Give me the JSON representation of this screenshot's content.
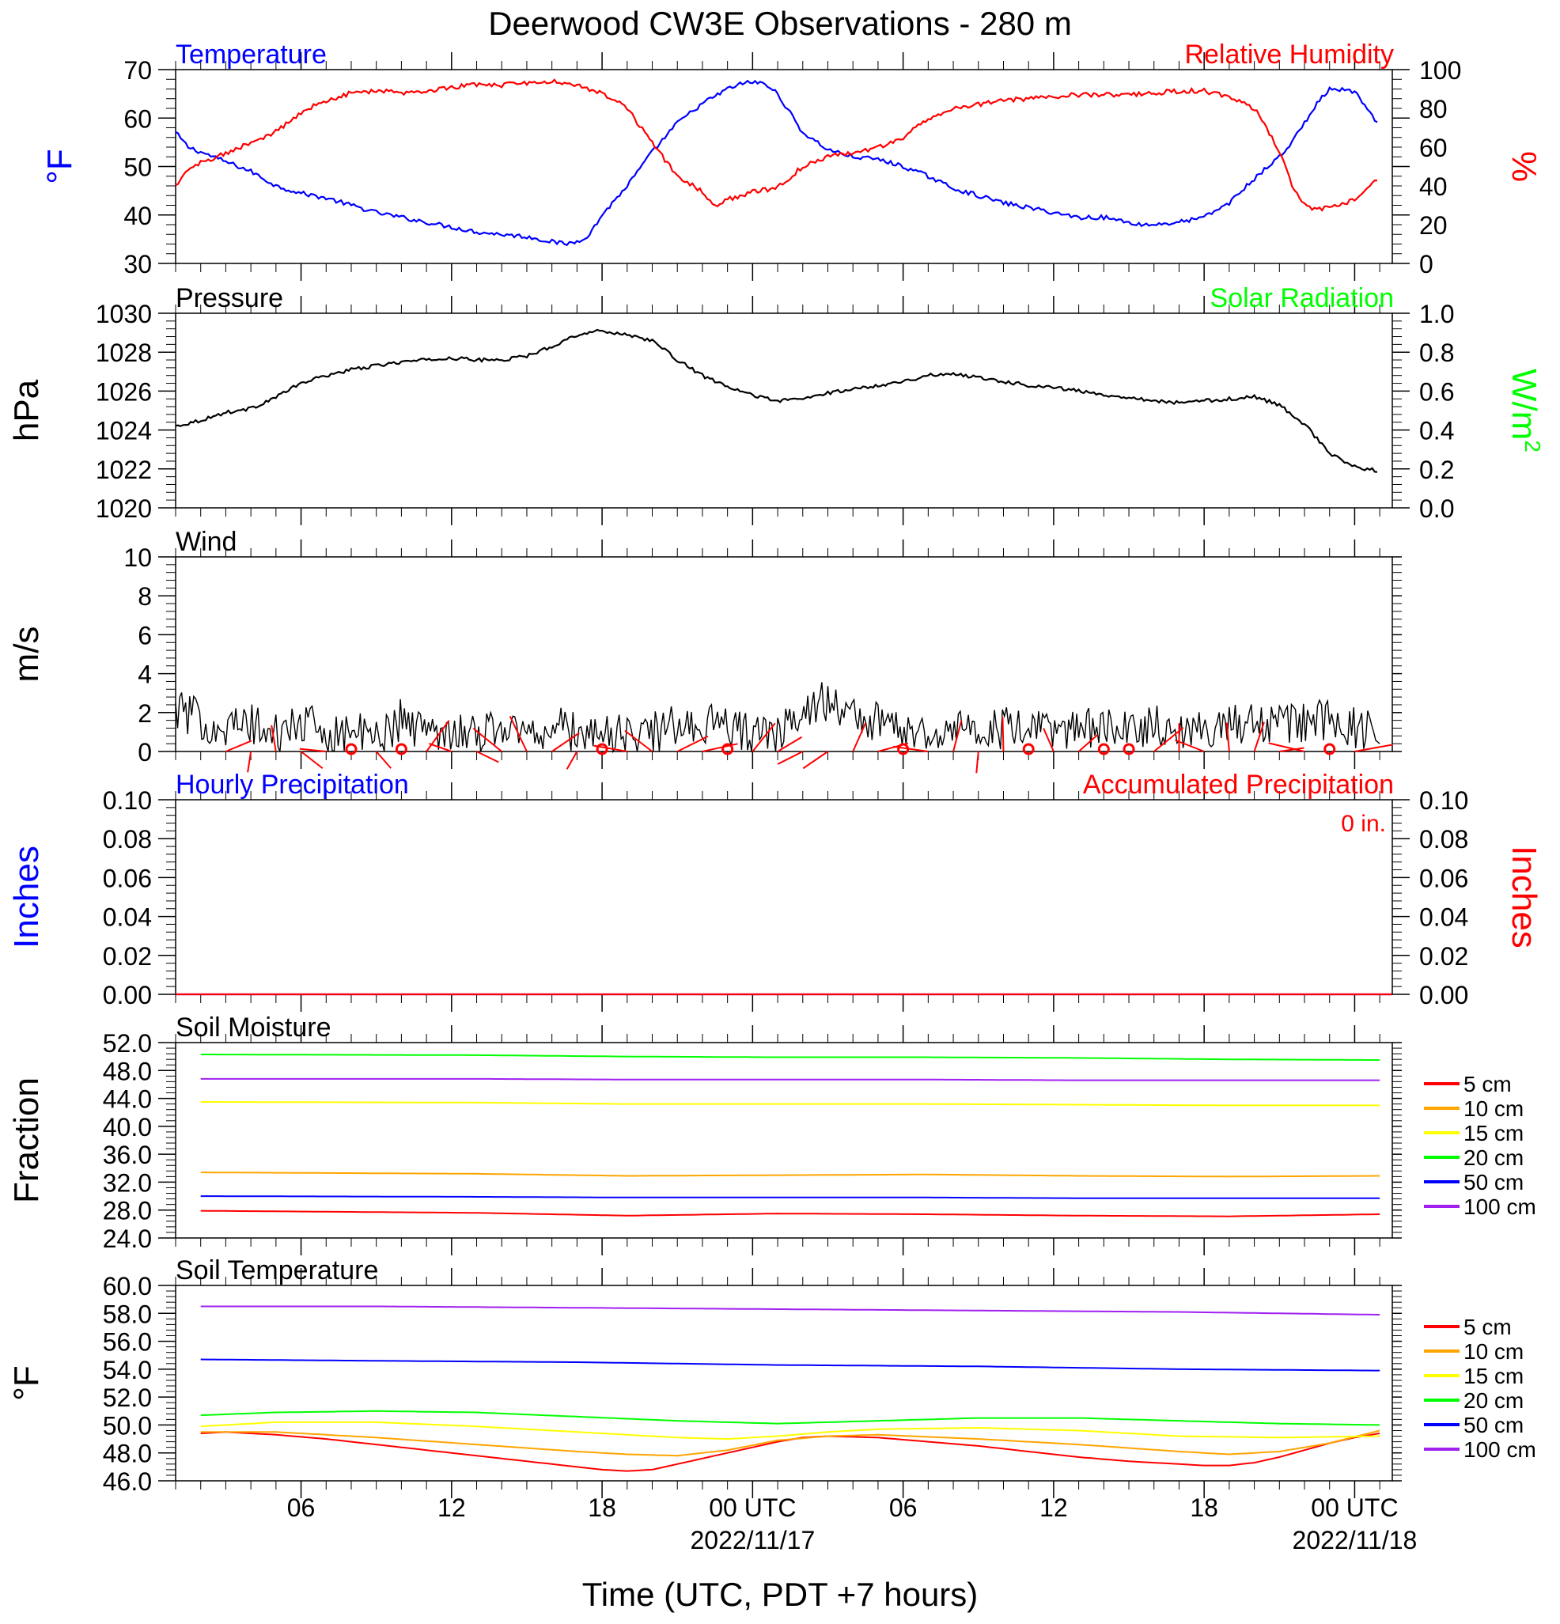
{
  "colors": {
    "temperature": "#0000ff",
    "humidity": "#ff0000",
    "solar": "#00ff00",
    "black": "#000000",
    "soil": [
      "#ff0000",
      "#ffa500",
      "#ffff00",
      "#00ff00",
      "#0000ff",
      "#a020f0"
    ]
  },
  "chart_data": [
    {
      "type": "line",
      "title": "Deerwood CW3E Observations - 280 m",
      "panel": "temperature-humidity",
      "left_title": "Temperature",
      "right_title": "Relative Humidity",
      "ylabel_left": "°F",
      "ylabel_right": "%",
      "ylim_left": [
        30,
        70
      ],
      "ylim_right": [
        0,
        100
      ],
      "yticks_left": [
        "30",
        "40",
        "50",
        "60",
        "70"
      ],
      "yticks_right": [
        "0",
        "20",
        "40",
        "60",
        "80",
        "100"
      ],
      "xlim_hours": [
        0,
        48
      ],
      "series": [
        {
          "name": "Temperature",
          "axis": "left",
          "x": [
            0,
            0.5,
            1,
            2,
            3,
            4,
            5,
            6,
            7,
            8,
            9,
            10,
            11,
            12,
            13,
            14,
            15,
            15.5,
            16,
            16.5,
            17,
            18,
            19,
            20,
            21,
            22,
            22.5,
            23,
            23.5,
            24,
            24.5,
            25,
            26,
            27,
            28,
            29,
            30,
            31,
            32,
            33,
            34,
            35,
            36,
            37,
            37.5,
            38,
            38.5,
            39,
            40,
            41,
            42,
            43,
            44,
            44.5,
            45,
            45.5,
            46,
            47,
            48
          ],
          "y": [
            57,
            54,
            53,
            51,
            49,
            46,
            44.5,
            43.5,
            42,
            40.5,
            39.5,
            38.5,
            37.5,
            36.5,
            36,
            35.5,
            34.5,
            34,
            34.5,
            36,
            40,
            46,
            53,
            59,
            63,
            66,
            67,
            67.5,
            67,
            65,
            61,
            57,
            53.5,
            52,
            51.5,
            50,
            48,
            45.5,
            44,
            42.5,
            41.5,
            40.5,
            39.5,
            39.5,
            39,
            38.5,
            38,
            38,
            38.5,
            39.5,
            42.5,
            47.5,
            52,
            55,
            59,
            63,
            66,
            65.5,
            58
          ]
        },
        {
          "name": "Relative Humidity",
          "axis": "right",
          "x": [
            0,
            0.5,
            1,
            2,
            3,
            4,
            5,
            6,
            7,
            8,
            9,
            10,
            11,
            12,
            13,
            14,
            15,
            16,
            17,
            18,
            19,
            20,
            21,
            21.5,
            22,
            23,
            24,
            25,
            26,
            27,
            28,
            29,
            30,
            31,
            32,
            33,
            34,
            35,
            36,
            37,
            38,
            39,
            40,
            41,
            42,
            43,
            44,
            44.5,
            45,
            45.5,
            46,
            47,
            48
          ],
          "y": [
            40,
            48,
            52,
            57,
            62,
            68,
            78,
            84,
            88,
            89,
            88,
            89,
            91,
            92,
            92,
            93,
            94,
            92,
            88,
            80,
            62,
            45,
            37,
            30,
            33,
            37,
            39,
            50,
            55,
            57,
            60,
            65,
            75,
            80,
            82,
            84,
            85,
            86,
            87,
            87,
            87,
            88,
            89,
            89,
            86,
            80,
            58,
            40,
            30,
            28,
            29,
            33,
            45
          ]
        }
      ]
    },
    {
      "type": "line",
      "panel": "pressure",
      "left_title": "Pressure",
      "right_title": "Solar Radiation",
      "ylabel_left": "hPa",
      "ylabel_right": "W/m",
      "ylabel_right_sup": "2",
      "ylim_left": [
        1020,
        1030
      ],
      "ylim_right": [
        0.0,
        1.0
      ],
      "yticks_left": [
        "1020",
        "1022",
        "1024",
        "1026",
        "1028",
        "1030"
      ],
      "yticks_right": [
        "0.0",
        "0.2",
        "0.4",
        "0.6",
        "0.8",
        "1.0"
      ],
      "series": [
        {
          "name": "Pressure",
          "axis": "left",
          "x": [
            0,
            1,
            2,
            3,
            4,
            5,
            6,
            7,
            8,
            9,
            10,
            11,
            12,
            13,
            14,
            15,
            16,
            16.5,
            17,
            18,
            19,
            20,
            21,
            22,
            23,
            24,
            25,
            26,
            27,
            28,
            29,
            30,
            31,
            32,
            33,
            34,
            35,
            36,
            37,
            38,
            39,
            40,
            41,
            42,
            43,
            44,
            45,
            46,
            47,
            48
          ],
          "y": [
            1024.2,
            1024.5,
            1024.9,
            1025.1,
            1025.7,
            1026.4,
            1026.8,
            1027.1,
            1027.3,
            1027.5,
            1027.6,
            1027.7,
            1027.6,
            1027.6,
            1027.8,
            1028.3,
            1028.9,
            1029.0,
            1029.1,
            1028.9,
            1028.6,
            1027.6,
            1026.8,
            1026.2,
            1025.8,
            1025.5,
            1025.6,
            1025.9,
            1026.1,
            1026.3,
            1026.5,
            1026.8,
            1026.9,
            1026.7,
            1026.5,
            1026.3,
            1026.2,
            1026.0,
            1025.8,
            1025.7,
            1025.5,
            1025.4,
            1025.5,
            1025.6,
            1025.7,
            1025.3,
            1024.3,
            1022.8,
            1022.1,
            1021.9
          ]
        }
      ]
    },
    {
      "type": "line",
      "panel": "wind",
      "left_title": "Wind",
      "ylabel_left": "m/s",
      "ylim_left": [
        0,
        10
      ],
      "yticks_left": [
        "0",
        "2",
        "4",
        "6",
        "8",
        "10"
      ],
      "series": [
        {
          "name": "Wind",
          "axis": "left",
          "x": [
            0,
            1,
            2,
            3,
            4,
            5,
            6,
            7,
            8,
            9,
            10,
            11,
            12,
            13,
            14,
            15,
            16,
            17,
            18,
            19,
            20,
            21,
            22,
            23,
            24,
            25,
            26,
            27,
            28,
            29,
            30,
            31,
            32,
            33,
            34,
            35,
            36,
            37,
            38,
            39,
            40,
            41,
            42,
            43,
            44,
            45,
            46,
            47,
            48
          ],
          "y": [
            2.2,
            1.6,
            1.2,
            1.4,
            0.8,
            1.5,
            0.9,
            1.1,
            0.6,
            1.7,
            1.0,
            1.2,
            0.9,
            1.4,
            0.8,
            1.3,
            1.0,
            0.9,
            0.8,
            1.0,
            1.3,
            1.5,
            1.2,
            1.0,
            0.7,
            2.4,
            2.6,
            1.8,
            1.5,
            1.2,
            1.0,
            1.3,
            0.9,
            1.2,
            1.0,
            1.1,
            1.3,
            1.1,
            1.0,
            1.4,
            1.2,
            1.1,
            1.3,
            1.6,
            1.4,
            1.5,
            1.7,
            1.2,
            0.8
          ]
        }
      ],
      "calm_hours": [
        7,
        9,
        17,
        22,
        29,
        34,
        37,
        38,
        46
      ]
    },
    {
      "type": "line",
      "panel": "precipitation",
      "left_title": "Hourly Precipitation",
      "right_title": "Accumulated Precipitation",
      "annotation": "0 in.",
      "ylabel_left": "Inches",
      "ylabel_right": "Inches",
      "ylim_left": [
        0,
        0.1
      ],
      "ylim_right": [
        0,
        0.1
      ],
      "yticks_left": [
        "0.00",
        "0.02",
        "0.04",
        "0.06",
        "0.08",
        "0.10"
      ],
      "yticks_right": [
        "0.00",
        "0.02",
        "0.04",
        "0.06",
        "0.08",
        "0.10"
      ],
      "series": [
        {
          "name": "Hourly Precipitation",
          "axis": "left",
          "x": [
            0,
            48
          ],
          "y": [
            0,
            0
          ]
        },
        {
          "name": "Accumulated Precipitation",
          "axis": "right",
          "x": [
            0,
            48
          ],
          "y": [
            0,
            0
          ]
        }
      ]
    },
    {
      "type": "line",
      "panel": "soil-moisture",
      "left_title": "Soil Moisture",
      "ylabel_left": "Fraction",
      "ylim_left": [
        24,
        52
      ],
      "yticks_left": [
        "24.0",
        "28.0",
        "32.0",
        "36.0",
        "40.0",
        "44.0",
        "48.0",
        "52.0"
      ],
      "legend": [
        "5 cm",
        "10 cm",
        "15 cm",
        "20 cm",
        "50 cm",
        "100 cm"
      ],
      "series": [
        {
          "name": "5 cm",
          "x": [
            1,
            12,
            18,
            24,
            30,
            36,
            42,
            48
          ],
          "y": [
            27.9,
            27.6,
            27.2,
            27.5,
            27.4,
            27.2,
            27.1,
            27.4
          ]
        },
        {
          "name": "10 cm",
          "x": [
            1,
            12,
            18,
            24,
            30,
            36,
            42,
            48
          ],
          "y": [
            33.4,
            33.2,
            32.9,
            33.0,
            33.1,
            32.9,
            32.8,
            32.9
          ]
        },
        {
          "name": "15 cm",
          "x": [
            1,
            12,
            18,
            24,
            30,
            36,
            42,
            48
          ],
          "y": [
            43.5,
            43.4,
            43.2,
            43.2,
            43.2,
            43.1,
            43.0,
            43.0
          ]
        },
        {
          "name": "20 cm",
          "x": [
            1,
            12,
            18,
            24,
            30,
            36,
            42,
            48
          ],
          "y": [
            50.3,
            50.2,
            50.0,
            49.9,
            49.9,
            49.8,
            49.6,
            49.5
          ]
        },
        {
          "name": "50 cm",
          "x": [
            1,
            12,
            18,
            24,
            30,
            36,
            42,
            48
          ],
          "y": [
            30.0,
            29.9,
            29.8,
            29.8,
            29.8,
            29.7,
            29.7,
            29.7
          ]
        },
        {
          "name": "100 cm",
          "x": [
            1,
            12,
            18,
            24,
            30,
            36,
            42,
            48
          ],
          "y": [
            46.8,
            46.8,
            46.7,
            46.7,
            46.7,
            46.6,
            46.6,
            46.6
          ]
        }
      ]
    },
    {
      "type": "line",
      "panel": "soil-temperature",
      "left_title": "Soil Temperature",
      "ylabel_left": "°F",
      "ylim_left": [
        46,
        60
      ],
      "yticks_left": [
        "46.0",
        "48.0",
        "50.0",
        "52.0",
        "54.0",
        "56.0",
        "58.0",
        "60.0"
      ],
      "legend": [
        "5 cm",
        "10 cm",
        "15 cm",
        "20 cm",
        "50 cm",
        "100 cm"
      ],
      "series": [
        {
          "name": "5 cm",
          "x": [
            1,
            2,
            4,
            6,
            8,
            10,
            12,
            14,
            16,
            17,
            18,
            19,
            20,
            22,
            24,
            25,
            26,
            28,
            30,
            32,
            34,
            36,
            38,
            40,
            41,
            42,
            43,
            44,
            45,
            46,
            47,
            48
          ],
          "y": [
            49.4,
            49.5,
            49.3,
            49.0,
            48.6,
            48.2,
            47.8,
            47.4,
            47.0,
            46.8,
            46.7,
            46.8,
            47.2,
            48.0,
            48.8,
            49.1,
            49.2,
            49.1,
            48.8,
            48.5,
            48.1,
            47.7,
            47.4,
            47.2,
            47.1,
            47.1,
            47.3,
            47.7,
            48.2,
            48.7,
            49.1,
            49.4
          ]
        },
        {
          "name": "10 cm",
          "x": [
            1,
            4,
            8,
            12,
            16,
            18,
            20,
            22,
            24,
            26,
            28,
            32,
            36,
            40,
            42,
            44,
            46,
            48
          ],
          "y": [
            49.5,
            49.5,
            49.1,
            48.6,
            48.1,
            47.9,
            47.8,
            48.2,
            48.9,
            49.2,
            49.3,
            49.0,
            48.6,
            48.1,
            47.9,
            48.1,
            48.7,
            49.6
          ]
        },
        {
          "name": "15 cm",
          "x": [
            1,
            4,
            8,
            12,
            16,
            20,
            22,
            24,
            26,
            28,
            32,
            36,
            40,
            44,
            48
          ],
          "y": [
            49.9,
            50.2,
            50.2,
            49.9,
            49.5,
            49.1,
            49.0,
            49.2,
            49.5,
            49.7,
            49.8,
            49.6,
            49.2,
            49.1,
            49.2
          ]
        },
        {
          "name": "20 cm",
          "x": [
            1,
            4,
            8,
            12,
            16,
            20,
            24,
            28,
            32,
            36,
            40,
            44,
            48
          ],
          "y": [
            50.7,
            50.9,
            51.0,
            50.9,
            50.6,
            50.3,
            50.1,
            50.3,
            50.5,
            50.5,
            50.3,
            50.1,
            50.0
          ]
        },
        {
          "name": "50 cm",
          "x": [
            1,
            8,
            16,
            24,
            32,
            40,
            48
          ],
          "y": [
            54.7,
            54.6,
            54.5,
            54.3,
            54.2,
            54.0,
            53.9
          ]
        },
        {
          "name": "100 cm",
          "x": [
            1,
            8,
            16,
            24,
            32,
            40,
            48
          ],
          "y": [
            58.5,
            58.5,
            58.4,
            58.3,
            58.2,
            58.1,
            57.9
          ]
        }
      ]
    }
  ],
  "x_axis": {
    "ticks": [
      {
        "h": 5,
        "label": "06"
      },
      {
        "h": 11,
        "label": "12"
      },
      {
        "h": 17,
        "label": "18"
      },
      {
        "h": 23,
        "label": "00 UTC",
        "date": "2022/11/17"
      },
      {
        "h": 29,
        "label": "06"
      },
      {
        "h": 35,
        "label": "12"
      },
      {
        "h": 41,
        "label": "18"
      },
      {
        "h": 47,
        "label": "00 UTC",
        "date": "2022/11/18"
      }
    ],
    "label": "Time (UTC, PDT +7 hours)"
  }
}
